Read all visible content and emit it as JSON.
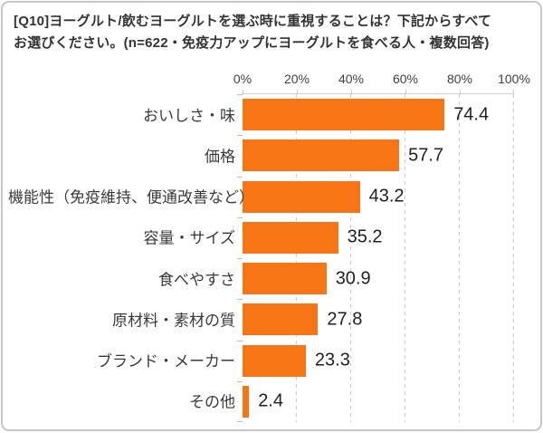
{
  "header": {
    "title_line1": "[Q10]ヨーグルト/飲むヨーグルトを選ぶ時に重視することは？下記からすべて",
    "title_line2": "お選びください。(n=622・免疫力アップにヨーグルトを食べる人・複数回答)"
  },
  "colors": {
    "bar": "#F77515",
    "grid": "#CCCCCC",
    "axis_ticks": "#BFBFBF",
    "card_border": "#C6C6C6",
    "title_text": "#333333",
    "category_text": "#3A3A3A",
    "value_text": "#1F1F1F"
  },
  "chart_data": {
    "type": "bar",
    "orientation": "horizontal",
    "title": "[Q10]ヨーグルト/飲むヨーグルトを選ぶ時に重視することは？下記からすべてお選びください。(n=622・免疫力アップにヨーグルトを食べる人・複数回答)",
    "categories": [
      "おいしさ・味",
      "価格",
      "機能性（免疫維持、便通改善など）",
      "容量・サイズ",
      "食べやすさ",
      "原材料・素材の質",
      "ブランド・メーカー",
      "その他"
    ],
    "values": [
      74.4,
      57.7,
      43.2,
      35.2,
      30.9,
      27.8,
      23.3,
      2.4
    ],
    "value_labels": [
      "74.4",
      "57.7",
      "43.2",
      "35.2",
      "30.9",
      "27.8",
      "23.3",
      "2.4"
    ],
    "xlim": [
      0,
      100
    ],
    "x_ticks": [
      0,
      20,
      40,
      60,
      80,
      100
    ],
    "x_tick_labels": [
      "0%",
      "20%",
      "40%",
      "60%",
      "80%",
      "100%"
    ],
    "grid": "vertical-dashed",
    "legend": "none",
    "bar_color": "#F77515"
  }
}
